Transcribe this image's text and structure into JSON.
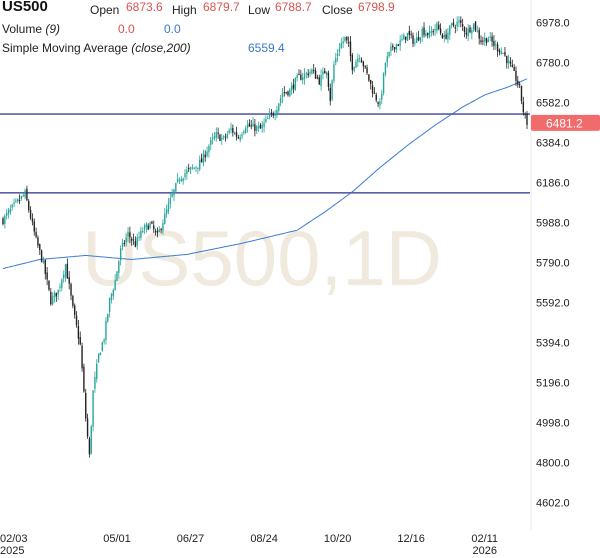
{
  "header": {
    "symbol": "US500",
    "open_label": "Open",
    "open_value": "6873.6",
    "high_label": "High",
    "high_value": "6879.7",
    "low_label": "Low",
    "low_value": "6788.7",
    "close_label": "Close",
    "close_value": "6798.9",
    "volume_label": "Volume",
    "volume_param": "(9)",
    "volume_value_1": "0.0",
    "volume_value_2": "0.0",
    "sma_label": "Simple Moving Average",
    "sma_param": "(close,200)",
    "sma_value": "6559.4"
  },
  "watermark": "US500,1D",
  "last_price_label": "6481.2",
  "colors": {
    "up": "#26a69a",
    "down": "#222222",
    "sma": "#3a7bd5",
    "hline": "#5a5fa8",
    "price_tag": "#f26b6b",
    "value_red": "#d9534f",
    "value_blue": "#3a78c9"
  },
  "chart_data": {
    "type": "candlestick",
    "y_ticks": [
      "6978.0",
      "6780.0",
      "6582.0",
      "6384.0",
      "6186.0",
      "5988.0",
      "5790.0",
      "5592.0",
      "5394.0",
      "5196.0",
      "4998.0",
      "4800.0",
      "4602.0"
    ],
    "y_tick_values": [
      6978,
      6780,
      6582,
      6384,
      6186,
      5988,
      5790,
      5592,
      5394,
      5196,
      4998,
      4800,
      4602
    ],
    "ylim": [
      4490,
      7090
    ],
    "x_ticks": [
      {
        "label": "02/03",
        "year": "2025",
        "index": 0
      },
      {
        "label": "05/01",
        "year": "",
        "index": 62
      },
      {
        "label": "06/27",
        "year": "",
        "index": 102
      },
      {
        "label": "08/24",
        "year": "",
        "index": 142
      },
      {
        "label": "10/20",
        "year": "",
        "index": 182
      },
      {
        "label": "12/16",
        "year": "",
        "index": 222
      },
      {
        "label": "02/11",
        "year": "2026",
        "index": 262
      }
    ],
    "horizontal_lines": [
      6525,
      6135
    ],
    "last_price": 6481.2,
    "anchors": [
      [
        0,
        6000
      ],
      [
        5,
        6060
      ],
      [
        12,
        6130
      ],
      [
        18,
        5900
      ],
      [
        22,
        5780
      ],
      [
        26,
        5600
      ],
      [
        30,
        5650
      ],
      [
        34,
        5780
      ],
      [
        38,
        5560
      ],
      [
        42,
        5380
      ],
      [
        45,
        5020
      ],
      [
        47,
        4830
      ],
      [
        49,
        5150
      ],
      [
        52,
        5330
      ],
      [
        55,
        5420
      ],
      [
        58,
        5600
      ],
      [
        61,
        5700
      ],
      [
        64,
        5850
      ],
      [
        68,
        5930
      ],
      [
        72,
        5880
      ],
      [
        76,
        5950
      ],
      [
        80,
        5980
      ],
      [
        84,
        5920
      ],
      [
        88,
        6020
      ],
      [
        92,
        6120
      ],
      [
        96,
        6210
      ],
      [
        100,
        6240
      ],
      [
        104,
        6260
      ],
      [
        108,
        6290
      ],
      [
        112,
        6370
      ],
      [
        116,
        6420
      ],
      [
        120,
        6400
      ],
      [
        124,
        6450
      ],
      [
        128,
        6410
      ],
      [
        132,
        6470
      ],
      [
        136,
        6460
      ],
      [
        140,
        6450
      ],
      [
        144,
        6500
      ],
      [
        148,
        6540
      ],
      [
        152,
        6630
      ],
      [
        156,
        6640
      ],
      [
        160,
        6700
      ],
      [
        164,
        6720
      ],
      [
        168,
        6740
      ],
      [
        172,
        6690
      ],
      [
        176,
        6750
      ],
      [
        178,
        6600
      ],
      [
        180,
        6770
      ],
      [
        183,
        6860
      ],
      [
        186,
        6900
      ],
      [
        188,
        6860
      ],
      [
        190,
        6760
      ],
      [
        194,
        6820
      ],
      [
        198,
        6720
      ],
      [
        202,
        6620
      ],
      [
        205,
        6570
      ],
      [
        208,
        6780
      ],
      [
        212,
        6860
      ],
      [
        216,
        6880
      ],
      [
        220,
        6920
      ],
      [
        224,
        6880
      ],
      [
        228,
        6940
      ],
      [
        232,
        6920
      ],
      [
        236,
        6960
      ],
      [
        240,
        6900
      ],
      [
        244,
        6960
      ],
      [
        248,
        6980
      ],
      [
        252,
        6930
      ],
      [
        256,
        6970
      ],
      [
        260,
        6890
      ],
      [
        264,
        6900
      ],
      [
        268,
        6860
      ],
      [
        272,
        6830
      ],
      [
        276,
        6760
      ],
      [
        279,
        6700
      ],
      [
        281,
        6650
      ],
      [
        283,
        6540
      ],
      [
        285,
        6481
      ]
    ],
    "sma_anchors": [
      [
        0,
        5760
      ],
      [
        20,
        5805
      ],
      [
        45,
        5825
      ],
      [
        70,
        5805
      ],
      [
        100,
        5830
      ],
      [
        130,
        5885
      ],
      [
        160,
        5950
      ],
      [
        175,
        6040
      ],
      [
        190,
        6140
      ],
      [
        205,
        6260
      ],
      [
        220,
        6370
      ],
      [
        235,
        6470
      ],
      [
        250,
        6560
      ],
      [
        262,
        6620
      ],
      [
        275,
        6660
      ],
      [
        285,
        6700
      ]
    ]
  }
}
